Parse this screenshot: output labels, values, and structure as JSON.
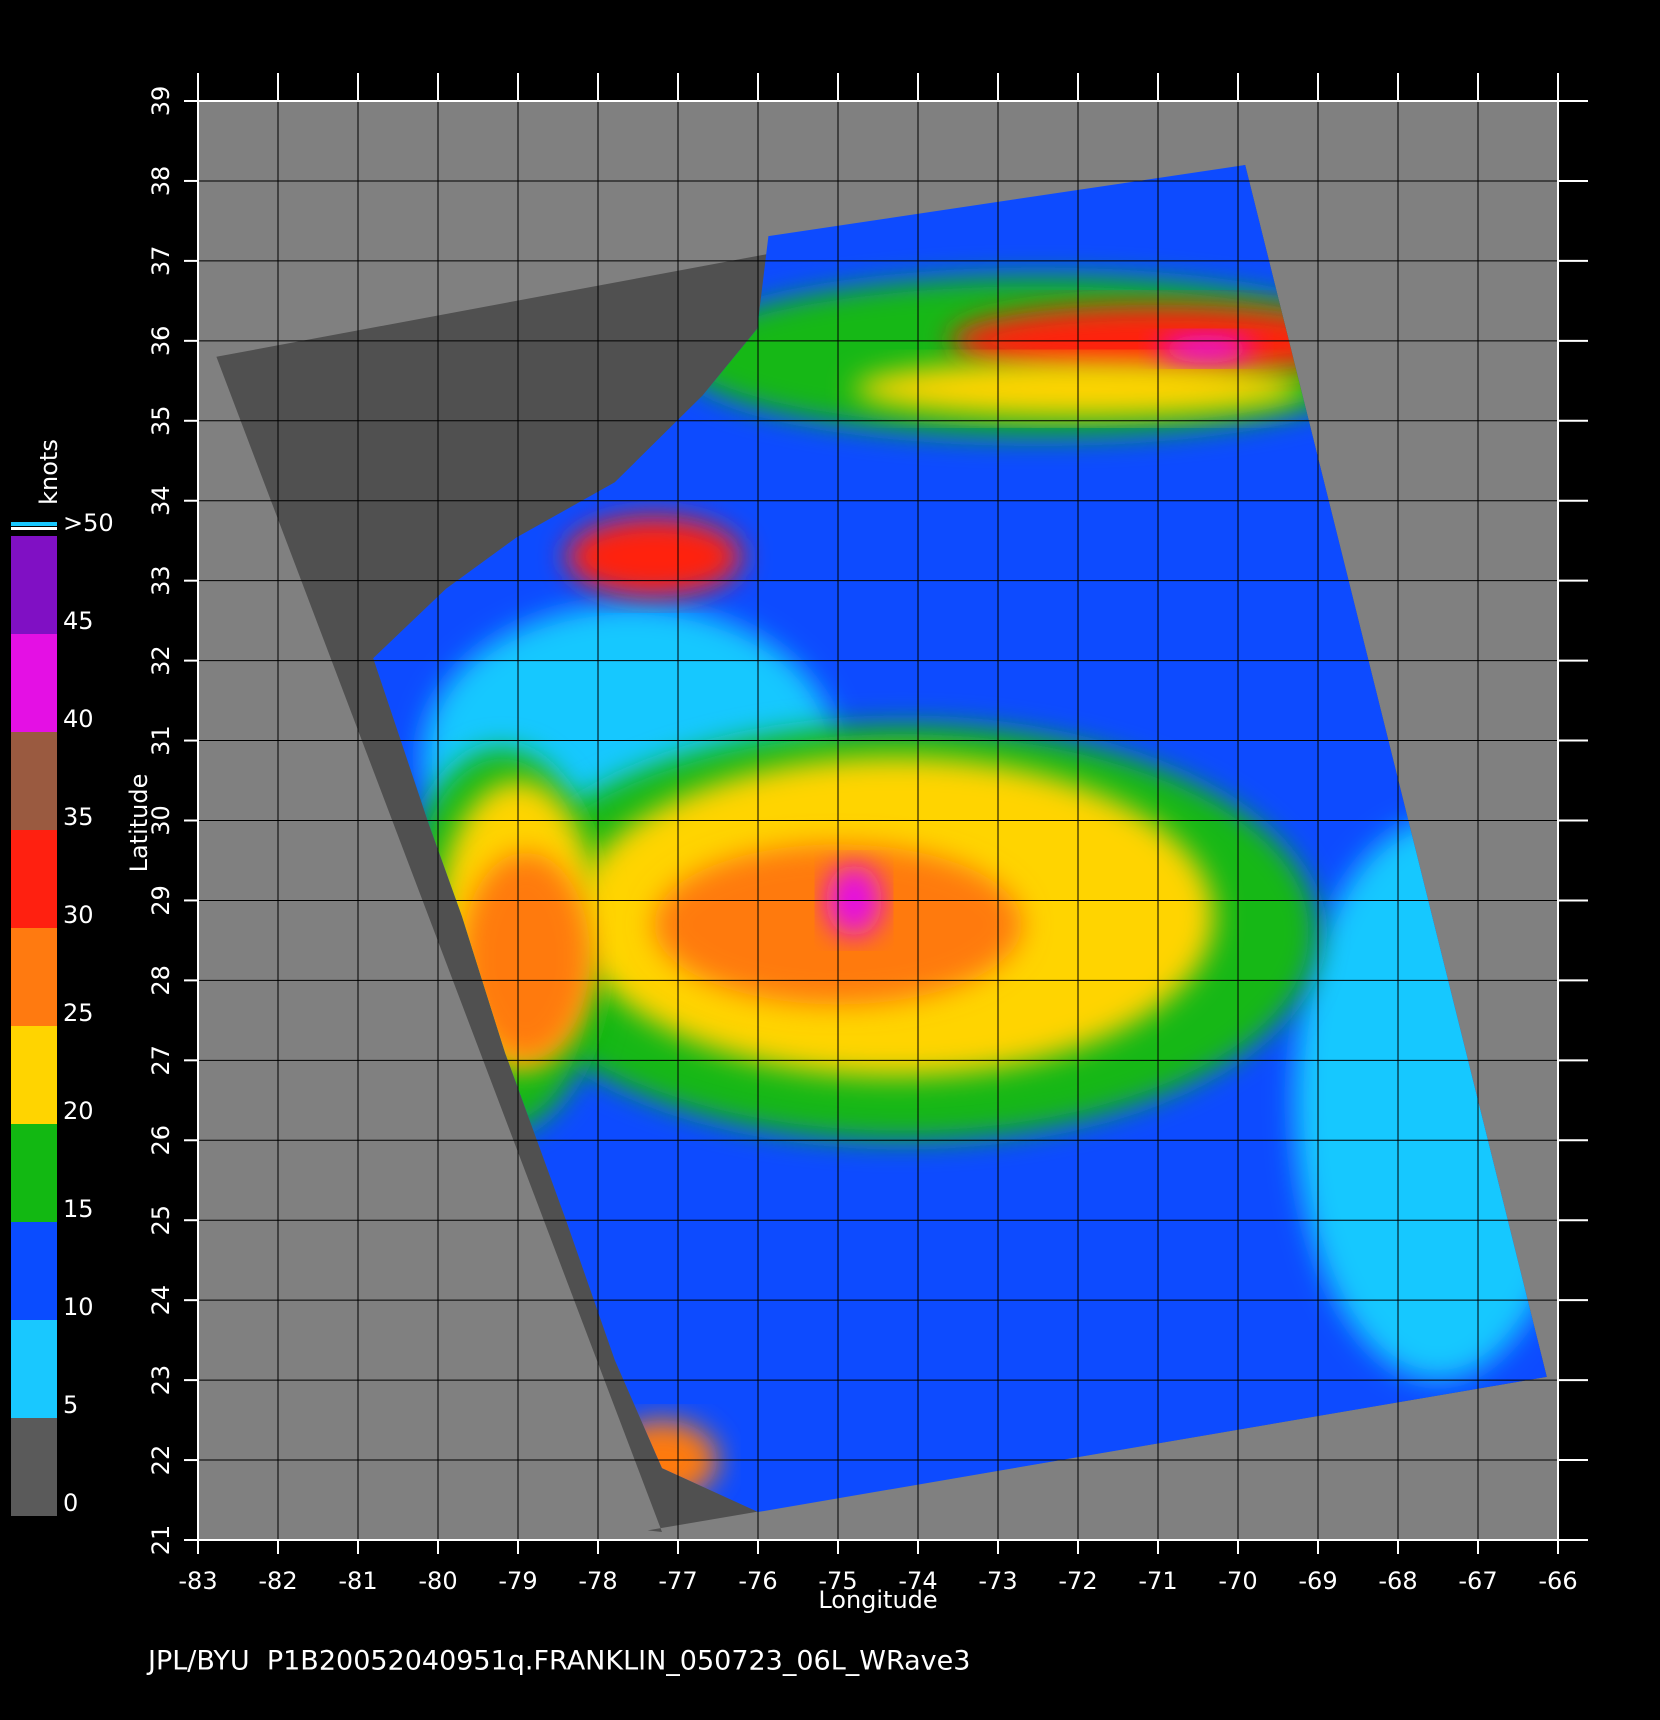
{
  "chart_data": {
    "type": "map",
    "caption": "JPL/BYU  P1B20052040951q.FRANKLIN_050723_06L_WRave3",
    "xlabel": "Longitude",
    "ylabel": "Latitude",
    "xlim": [
      -83,
      -66
    ],
    "ylim": [
      21,
      39
    ],
    "xticks": [
      -83,
      -82,
      -81,
      -80,
      -79,
      -78,
      -77,
      -76,
      -75,
      -74,
      -73,
      -72,
      -71,
      -70,
      -69,
      -68,
      -67,
      -66
    ],
    "yticks": [
      21,
      22,
      23,
      24,
      25,
      26,
      27,
      28,
      29,
      30,
      31,
      32,
      33,
      34,
      35,
      36,
      37,
      38,
      39
    ],
    "grid": true,
    "colorbar": {
      "label": "knots",
      "ticks": [
        0,
        5,
        10,
        15,
        20,
        25,
        30,
        35,
        40,
        45,
        {
          "value": 50,
          "label": ">50"
        }
      ],
      "colors": [
        "#5a5a5a",
        "#19c8ff",
        "#0a4cff",
        "#12b812",
        "#ffd400",
        "#ff7a10",
        "#ff2010",
        "#9a5a40",
        "#e410e4",
        "#8010c4"
      ]
    }
  }
}
